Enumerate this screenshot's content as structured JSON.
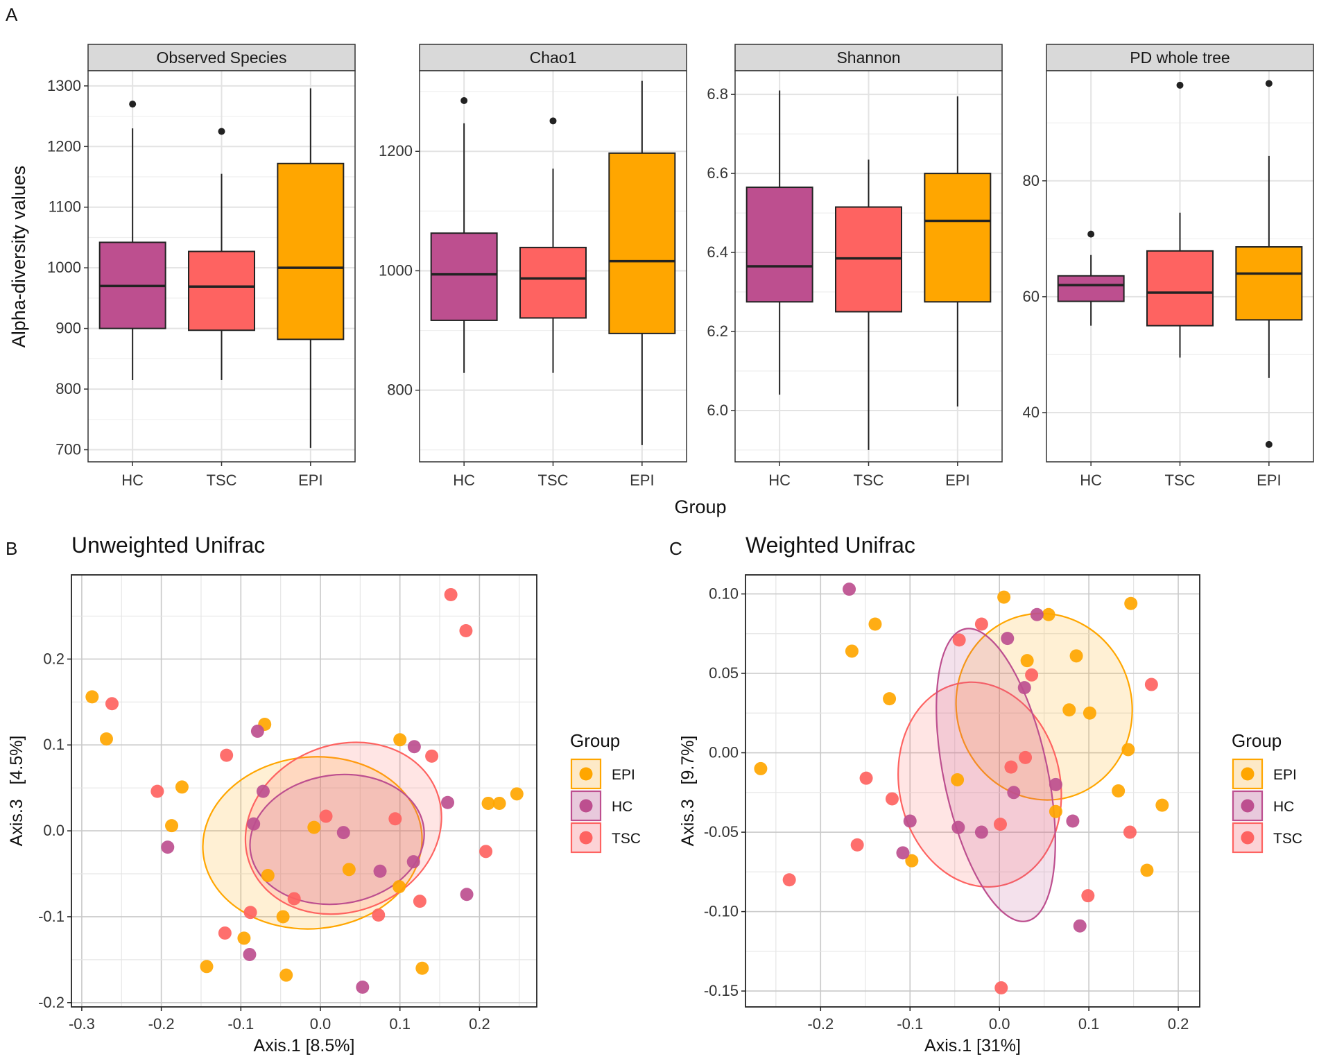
{
  "figure": {
    "panel_labels": [
      "A",
      "B",
      "C"
    ],
    "shared_xlabel_A": "Group",
    "shared_ylabel_A": "Alpha-diversity values"
  },
  "colors": {
    "HC": "#bd4f8f",
    "TSC": "#fe6361",
    "EPI": "#ffa600",
    "HC_fill": "#e8c9dc",
    "TSC_fill": "#fcd3d6",
    "EPI_fill": "#fde9c7"
  },
  "chart_data": [
    {
      "type": "box",
      "title": "Observed Species",
      "categories": [
        "HC",
        "TSC",
        "EPI"
      ],
      "ylim": [
        680,
        1325
      ],
      "yticks": [
        700,
        800,
        900,
        1000,
        1100,
        1200,
        1300
      ],
      "boxes": [
        {
          "group": "HC",
          "min": 815,
          "q1": 900,
          "median": 970,
          "q3": 1042,
          "max": 1230,
          "outliers": [
            1270
          ]
        },
        {
          "group": "TSC",
          "min": 815,
          "q1": 897,
          "median": 969,
          "q3": 1027,
          "max": 1155,
          "outliers": [
            1225
          ]
        },
        {
          "group": "EPI",
          "min": 703,
          "q1": 882,
          "median": 1000,
          "q3": 1172,
          "max": 1296,
          "outliers": []
        }
      ]
    },
    {
      "type": "box",
      "title": "Chao1",
      "categories": [
        "HC",
        "TSC",
        "EPI"
      ],
      "ylim": [
        680,
        1335
      ],
      "yticks": [
        800,
        1000,
        1200
      ],
      "boxes": [
        {
          "group": "HC",
          "min": 829,
          "q1": 917,
          "median": 994,
          "q3": 1063,
          "max": 1247,
          "outliers": [
            1285
          ]
        },
        {
          "group": "TSC",
          "min": 829,
          "q1": 921,
          "median": 987,
          "q3": 1039,
          "max": 1171,
          "outliers": [
            1251
          ]
        },
        {
          "group": "EPI",
          "min": 708,
          "q1": 895,
          "median": 1016,
          "q3": 1197,
          "max": 1318,
          "outliers": []
        }
      ]
    },
    {
      "type": "box",
      "title": "Shannon",
      "categories": [
        "HC",
        "TSC",
        "EPI"
      ],
      "ylim": [
        5.87,
        6.86
      ],
      "yticks": [
        6.0,
        6.2,
        6.4,
        6.6,
        6.8
      ],
      "boxes": [
        {
          "group": "HC",
          "min": 6.04,
          "q1": 6.275,
          "median": 6.365,
          "q3": 6.565,
          "max": 6.81,
          "outliers": []
        },
        {
          "group": "TSC",
          "min": 5.9,
          "q1": 6.25,
          "median": 6.385,
          "q3": 6.515,
          "max": 6.635,
          "outliers": []
        },
        {
          "group": "EPI",
          "min": 6.01,
          "q1": 6.275,
          "median": 6.48,
          "q3": 6.6,
          "max": 6.795,
          "outliers": []
        }
      ]
    },
    {
      "type": "box",
      "title": "PD whole tree",
      "categories": [
        "HC",
        "TSC",
        "EPI"
      ],
      "ylim": [
        31.5,
        99
      ],
      "yticks": [
        40,
        60,
        80
      ],
      "boxes": [
        {
          "group": "HC",
          "min": 55,
          "q1": 59.2,
          "median": 62,
          "q3": 63.6,
          "max": 67.2,
          "outliers": [
            70.8
          ]
        },
        {
          "group": "TSC",
          "min": 49.5,
          "q1": 55,
          "median": 60.7,
          "q3": 67.9,
          "max": 74.5,
          "outliers": [
            96.5
          ]
        },
        {
          "group": "EPI",
          "min": 46,
          "q1": 56,
          "median": 64,
          "q3": 68.6,
          "max": 84.3,
          "outliers": [
            34.5,
            96.8
          ]
        }
      ]
    },
    {
      "type": "scatter",
      "title": "Unweighted Unifrac",
      "xlabel": "Axis.1   [8.5%]",
      "ylabel": "Axis.3   [4.5%]",
      "xlim": [
        -0.313,
        0.272
      ],
      "ylim": [
        -0.205,
        0.298
      ],
      "xticks": [
        -0.3,
        -0.2,
        -0.1,
        0.0,
        0.1,
        0.2
      ],
      "yticks": [
        -0.2,
        -0.1,
        0.0,
        0.1,
        0.2
      ],
      "legend": {
        "title": "Group",
        "position": "right",
        "entries": [
          "EPI",
          "HC",
          "TSC"
        ]
      },
      "series": [
        {
          "name": "EPI",
          "points": [
            [
              -0.287,
              0.156
            ],
            [
              -0.269,
              0.107
            ],
            [
              -0.174,
              0.051
            ],
            [
              -0.187,
              0.006
            ],
            [
              -0.07,
              0.124
            ],
            [
              -0.066,
              -0.052
            ],
            [
              -0.008,
              0.004
            ],
            [
              0.036,
              -0.045
            ],
            [
              0.1,
              0.106
            ],
            [
              0.099,
              -0.065
            ],
            [
              -0.047,
              -0.1
            ],
            [
              -0.096,
              -0.125
            ],
            [
              -0.143,
              -0.158
            ],
            [
              -0.043,
              -0.168
            ],
            [
              0.128,
              -0.16
            ],
            [
              0.211,
              0.032
            ],
            [
              0.225,
              0.032
            ],
            [
              0.247,
              0.043
            ]
          ]
        },
        {
          "name": "HC",
          "points": [
            [
              -0.192,
              -0.019
            ],
            [
              -0.079,
              0.116
            ],
            [
              -0.072,
              0.046
            ],
            [
              -0.084,
              0.008
            ],
            [
              0.029,
              -0.002
            ],
            [
              0.075,
              -0.047
            ],
            [
              0.118,
              0.098
            ],
            [
              0.117,
              -0.036
            ],
            [
              0.16,
              0.033
            ],
            [
              0.184,
              -0.074
            ],
            [
              -0.089,
              -0.144
            ],
            [
              0.053,
              -0.182
            ]
          ]
        },
        {
          "name": "TSC",
          "points": [
            [
              -0.262,
              0.148
            ],
            [
              -0.118,
              0.088
            ],
            [
              -0.205,
              0.046
            ],
            [
              0.007,
              0.017
            ],
            [
              0.094,
              0.014
            ],
            [
              0.14,
              0.087
            ],
            [
              0.164,
              0.275
            ],
            [
              0.183,
              0.233
            ],
            [
              0.208,
              -0.024
            ],
            [
              0.125,
              -0.082
            ],
            [
              0.073,
              -0.098
            ],
            [
              -0.033,
              -0.079
            ],
            [
              -0.088,
              -0.095
            ],
            [
              -0.12,
              -0.119
            ]
          ]
        }
      ],
      "ellipses": [
        {
          "group": "EPI",
          "cx": -0.01,
          "cy": -0.014,
          "rx": 0.138,
          "ry": 0.1,
          "angle": -5
        },
        {
          "group": "HC",
          "cx": 0.021,
          "cy": -0.01,
          "rx": 0.11,
          "ry": 0.075,
          "angle": -8
        },
        {
          "group": "TSC",
          "cx": 0.029,
          "cy": 0.003,
          "rx": 0.126,
          "ry": 0.097,
          "angle": -22
        }
      ]
    },
    {
      "type": "scatter",
      "title": "Weighted Unifrac",
      "xlabel": "Axis.1   [31%]",
      "ylabel": "Axis.3   [9.7%]",
      "xlim": [
        -0.284,
        0.224
      ],
      "ylim": [
        -0.16,
        0.112
      ],
      "xticks": [
        -0.2,
        -0.1,
        0.0,
        0.1,
        0.2
      ],
      "yticks": [
        -0.15,
        -0.1,
        -0.05,
        0.0,
        0.05,
        0.1
      ],
      "legend": {
        "title": "Group",
        "position": "right",
        "entries": [
          "EPI",
          "HC",
          "TSC"
        ]
      },
      "series": [
        {
          "name": "EPI",
          "points": [
            [
              -0.267,
              -0.01
            ],
            [
              -0.165,
              0.064
            ],
            [
              -0.139,
              0.081
            ],
            [
              -0.123,
              0.034
            ],
            [
              -0.098,
              -0.068
            ],
            [
              -0.047,
              -0.017
            ],
            [
              0.005,
              0.098
            ],
            [
              0.055,
              0.087
            ],
            [
              0.031,
              0.058
            ],
            [
              0.078,
              0.027
            ],
            [
              0.101,
              0.025
            ],
            [
              0.086,
              0.061
            ],
            [
              0.147,
              0.094
            ],
            [
              0.144,
              0.002
            ],
            [
              0.133,
              -0.024
            ],
            [
              0.063,
              -0.037
            ],
            [
              0.165,
              -0.074
            ],
            [
              0.182,
              -0.033
            ]
          ]
        },
        {
          "name": "HC",
          "points": [
            [
              -0.168,
              0.103
            ],
            [
              -0.108,
              -0.063
            ],
            [
              -0.1,
              -0.043
            ],
            [
              -0.046,
              -0.047
            ],
            [
              -0.02,
              -0.05
            ],
            [
              0.009,
              0.072
            ],
            [
              0.028,
              0.041
            ],
            [
              0.016,
              -0.025
            ],
            [
              0.042,
              0.087
            ],
            [
              0.063,
              -0.02
            ],
            [
              0.082,
              -0.043
            ],
            [
              0.09,
              -0.109
            ]
          ]
        },
        {
          "name": "TSC",
          "points": [
            [
              -0.235,
              -0.08
            ],
            [
              -0.159,
              -0.058
            ],
            [
              -0.149,
              -0.016
            ],
            [
              -0.12,
              -0.029
            ],
            [
              -0.045,
              0.071
            ],
            [
              -0.02,
              0.081
            ],
            [
              0.029,
              -0.003
            ],
            [
              0.013,
              -0.009
            ],
            [
              0.001,
              -0.045
            ],
            [
              0.036,
              0.049
            ],
            [
              0.17,
              0.043
            ],
            [
              0.146,
              -0.05
            ],
            [
              0.099,
              -0.09
            ],
            [
              0.002,
              -0.148
            ]
          ]
        }
      ],
      "ellipses": [
        {
          "group": "EPI",
          "cx": 0.05,
          "cy": 0.029,
          "rx": 0.098,
          "ry": 0.059,
          "angle": -16
        },
        {
          "group": "HC",
          "cx": -0.004,
          "cy": -0.014,
          "rx": 0.058,
          "ry": 0.094,
          "angle": -12
        },
        {
          "group": "TSC",
          "cx": -0.022,
          "cy": -0.02,
          "rx": 0.09,
          "ry": 0.065,
          "angle": -12
        }
      ]
    }
  ]
}
